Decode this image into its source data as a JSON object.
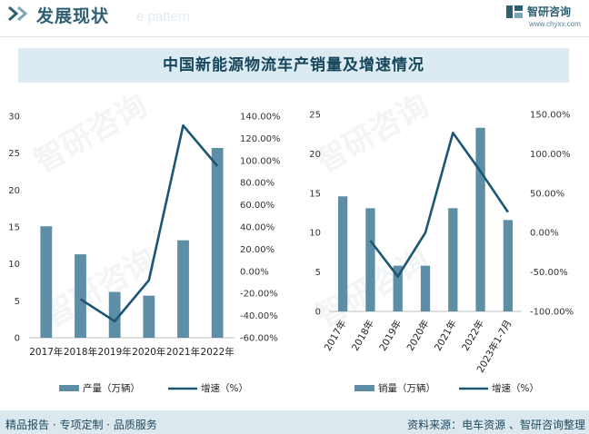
{
  "header": {
    "section_title": "发展现状",
    "ghost_text": "e pattern",
    "brand_name": "智研咨询",
    "brand_url": "www.chyxx.com"
  },
  "title": "中国新能源物流车产销量及增速情况",
  "watermark": "智研咨询",
  "colors": {
    "bar": "#5e8ea6",
    "line": "#1c5672",
    "accent": "#2f5f73"
  },
  "chart_data": [
    {
      "type": "bar",
      "categories": [
        "2017年",
        "2018年",
        "2019年",
        "2020年",
        "2021年",
        "2022年"
      ],
      "series": [
        {
          "name": "产量（万辆）",
          "type": "bar",
          "axis": "left",
          "values": [
            15.1,
            11.3,
            6.2,
            5.7,
            13.2,
            25.7
          ]
        },
        {
          "name": "增速（%）",
          "type": "line",
          "axis": "right",
          "values": [
            null,
            -25.2,
            -45.1,
            -8.1,
            131.6,
            95.0
          ]
        }
      ],
      "y_left": {
        "range": [
          0,
          30
        ],
        "ticks": [
          "0",
          "5",
          "10",
          "15",
          "20",
          "25",
          "30"
        ]
      },
      "y_right": {
        "range": [
          -60,
          140
        ],
        "ticks": [
          "-60.00%",
          "-40.00%",
          "-20.00%",
          "0.00%",
          "20.00%",
          "40.00%",
          "60.00%",
          "80.00%",
          "100.00%",
          "120.00%",
          "140.00%"
        ]
      },
      "legend_position": "bottom"
    },
    {
      "type": "bar",
      "categories": [
        "2017年",
        "2018年",
        "2019年",
        "2020年",
        "2021年",
        "2022年",
        "2023年1-7月"
      ],
      "series": [
        {
          "name": "销量（万辆）",
          "type": "bar",
          "axis": "left",
          "values": [
            14.6,
            13.1,
            5.8,
            5.8,
            13.1,
            23.3,
            11.6
          ]
        },
        {
          "name": "增速（%）",
          "type": "line",
          "axis": "right",
          "values": [
            null,
            -10.1,
            -55.8,
            0.0,
            126.6,
            77.6,
            26.0
          ]
        }
      ],
      "y_left": {
        "range": [
          0,
          25
        ],
        "ticks": [
          "0",
          "5",
          "10",
          "15",
          "20",
          "25"
        ]
      },
      "y_right": {
        "range": [
          -100,
          150
        ],
        "ticks": [
          "-100.00%",
          "-50.00%",
          "0.00%",
          "50.00%",
          "100.00%",
          "150.00%"
        ]
      },
      "legend_position": "bottom"
    }
  ],
  "footer": {
    "left": "精品报告 · 专项定制 · 品质服务",
    "right": "资料来源：电车资源 、智研咨询整理"
  }
}
